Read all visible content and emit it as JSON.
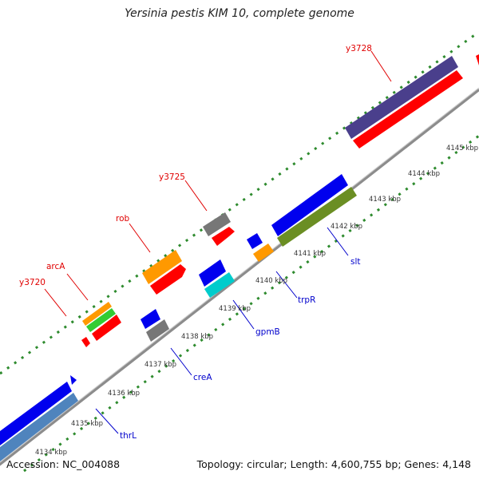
{
  "title": "Yersinia pestis KIM 10, complete genome",
  "footer": {
    "accession": "Accession: NC_004088",
    "summary": "Topology: circular; Length: 4,600,755 bp; Genes: 4,148"
  },
  "colors": {
    "backbone": "#8c8c8c",
    "tick": "#2e8b2e",
    "label_red": "#e00000",
    "label_blue": "#0000cc"
  },
  "kbp_ticks": [
    "4134 kbp",
    "4135 kbp",
    "4136 kbp",
    "4137 kbp",
    "4138 kbp",
    "4139 kbp",
    "4140 kbp",
    "4141 kbp",
    "4142 kbp",
    "4143 kbp",
    "4144 kbp",
    "4145 kbp"
  ],
  "genes_upper": [
    {
      "name": "y3720",
      "color": "#e00000"
    },
    {
      "name": "arcA",
      "color": "#e00000"
    },
    {
      "name": "rob",
      "color": "#e00000"
    },
    {
      "name": "y3725",
      "color": "#e00000"
    },
    {
      "name": "y3728",
      "color": "#e00000"
    }
  ],
  "genes_lower": [
    {
      "name": "thrL",
      "color": "#0000cc"
    },
    {
      "name": "creA",
      "color": "#0000cc"
    },
    {
      "name": "gpmB",
      "color": "#0000cc"
    },
    {
      "name": "trpR",
      "color": "#0000cc"
    },
    {
      "name": "slt",
      "color": "#0000cc"
    }
  ]
}
